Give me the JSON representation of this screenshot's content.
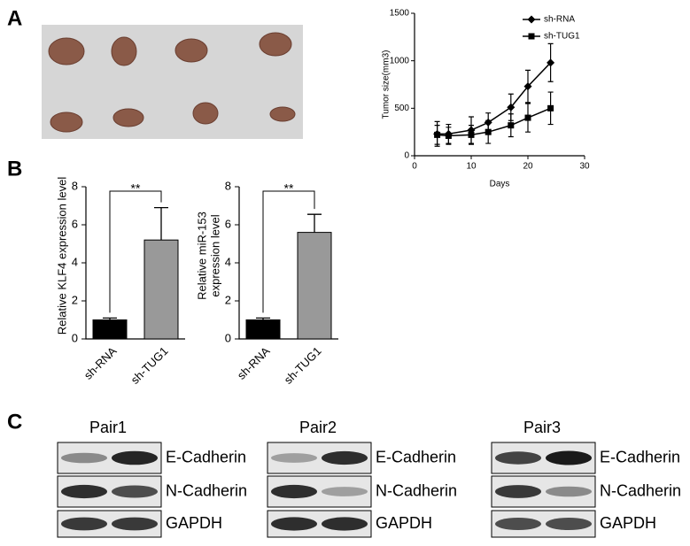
{
  "panel_labels": [
    "A",
    "B",
    "C"
  ],
  "chart_data": [
    {
      "type": "line",
      "ylabel": "Tumor size(mm3)",
      "xlabel": "Days",
      "x": [
        4,
        6,
        10,
        13,
        17,
        20,
        24
      ],
      "series": [
        {
          "name": "sh-RNA",
          "color": "#000000",
          "marker": "diamond",
          "values": [
            230,
            230,
            270,
            350,
            510,
            730,
            980
          ],
          "errors": [
            130,
            100,
            140,
            100,
            140,
            170,
            200
          ]
        },
        {
          "name": "sh-TUG1",
          "color": "#000000",
          "marker": "square",
          "values": [
            220,
            210,
            220,
            250,
            320,
            400,
            500
          ],
          "errors": [
            100,
            90,
            100,
            120,
            120,
            150,
            170
          ]
        }
      ],
      "xlim": [
        0,
        30
      ],
      "xticks": [
        0,
        10,
        20,
        30
      ],
      "ylim": [
        0,
        1500
      ],
      "yticks": [
        0,
        500,
        1000,
        1500
      ],
      "legend": "top-right"
    },
    {
      "type": "bar",
      "ylabel": [
        "Relative KLF4 expression level"
      ],
      "categories": [
        "sh-RNA",
        "sh-TUG1"
      ],
      "values": [
        1.0,
        5.2
      ],
      "errors": [
        0.1,
        1.7
      ],
      "colors": [
        "#000000",
        "#999999"
      ],
      "ylim": [
        0,
        8
      ],
      "yticks": [
        0,
        2,
        4,
        6,
        8
      ],
      "annotation": "**"
    },
    {
      "type": "bar",
      "ylabel": [
        "Relative miR-153",
        "expression level"
      ],
      "categories": [
        "sh-RNA",
        "sh-TUG1"
      ],
      "values": [
        1.0,
        5.6
      ],
      "errors": [
        0.1,
        0.95
      ],
      "colors": [
        "#000000",
        "#999999"
      ],
      "ylim": [
        0,
        8
      ],
      "yticks": [
        0,
        2,
        4,
        6,
        8
      ],
      "annotation": "**"
    }
  ],
  "blots": [
    {
      "title": "Pair1",
      "bands": [
        "E-Cadherin",
        "N-Cadherin",
        "GAPDH"
      ]
    },
    {
      "title": "Pair2",
      "bands": [
        "E-Cadherin",
        "N-Cadherin",
        "GAPDH"
      ]
    },
    {
      "title": "Pair3",
      "bands": [
        "E-Cadherin",
        "N-Cadherin",
        "GAPDH"
      ]
    }
  ]
}
